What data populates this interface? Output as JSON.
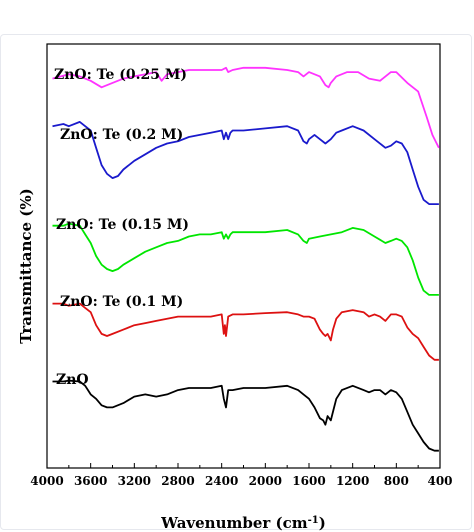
{
  "chart_data": {
    "type": "line",
    "title": "",
    "xlabel": "Wavenumber (cm",
    "xlabel_sup": "-1",
    "xlabel_tail": ")",
    "ylabel": "Transmittance (%)",
    "xlim": [
      4000,
      400
    ],
    "x_reversed": true,
    "xticks": [
      "4000",
      "3600",
      "3200",
      "2800",
      "2400",
      "2000",
      "1600",
      "1200",
      "800",
      "400"
    ],
    "y_tick_labels": false,
    "grid": false,
    "legend": "inline labels",
    "series": [
      {
        "name": "ZnO: Te (0.25 M)",
        "color": "#ff33ff",
        "points": [
          [
            3950,
            0.78
          ],
          [
            3800,
            0.77
          ],
          [
            3700,
            0.775
          ],
          [
            3600,
            0.785
          ],
          [
            3500,
            0.8
          ],
          [
            3400,
            0.79
          ],
          [
            3300,
            0.78
          ],
          [
            3200,
            0.775
          ],
          [
            3100,
            0.77
          ],
          [
            3000,
            0.765
          ],
          [
            2950,
            0.785
          ],
          [
            2900,
            0.77
          ],
          [
            2800,
            0.765
          ],
          [
            2700,
            0.76
          ],
          [
            2600,
            0.76
          ],
          [
            2500,
            0.76
          ],
          [
            2400,
            0.76
          ],
          [
            2360,
            0.755
          ],
          [
            2340,
            0.765
          ],
          [
            2300,
            0.76
          ],
          [
            2200,
            0.755
          ],
          [
            2000,
            0.755
          ],
          [
            1800,
            0.76
          ],
          [
            1700,
            0.765
          ],
          [
            1650,
            0.775
          ],
          [
            1600,
            0.765
          ],
          [
            1500,
            0.775
          ],
          [
            1450,
            0.795
          ],
          [
            1420,
            0.8
          ],
          [
            1400,
            0.79
          ],
          [
            1350,
            0.775
          ],
          [
            1250,
            0.765
          ],
          [
            1150,
            0.765
          ],
          [
            1050,
            0.78
          ],
          [
            950,
            0.785
          ],
          [
            850,
            0.765
          ],
          [
            800,
            0.765
          ],
          [
            700,
            0.79
          ],
          [
            600,
            0.81
          ],
          [
            520,
            0.87
          ],
          [
            470,
            0.91
          ],
          [
            430,
            0.93
          ],
          [
            410,
            0.94
          ]
        ]
      },
      {
        "name": "ZnO: Te (0.2 M)",
        "color": "#1a1acc",
        "points": [
          [
            3950,
            0.89
          ],
          [
            3850,
            0.885
          ],
          [
            3800,
            0.89
          ],
          [
            3700,
            0.88
          ],
          [
            3650,
            0.89
          ],
          [
            3600,
            0.9
          ],
          [
            3550,
            0.94
          ],
          [
            3500,
            0.98
          ],
          [
            3450,
            1.0
          ],
          [
            3400,
            1.01
          ],
          [
            3350,
            1.005
          ],
          [
            3300,
            0.99
          ],
          [
            3200,
            0.97
          ],
          [
            3100,
            0.955
          ],
          [
            3000,
            0.94
          ],
          [
            2900,
            0.93
          ],
          [
            2800,
            0.925
          ],
          [
            2700,
            0.915
          ],
          [
            2600,
            0.91
          ],
          [
            2500,
            0.905
          ],
          [
            2400,
            0.9
          ],
          [
            2380,
            0.92
          ],
          [
            2360,
            0.905
          ],
          [
            2340,
            0.92
          ],
          [
            2320,
            0.905
          ],
          [
            2300,
            0.9
          ],
          [
            2200,
            0.9
          ],
          [
            2000,
            0.895
          ],
          [
            1800,
            0.89
          ],
          [
            1700,
            0.9
          ],
          [
            1650,
            0.925
          ],
          [
            1620,
            0.93
          ],
          [
            1600,
            0.92
          ],
          [
            1550,
            0.91
          ],
          [
            1500,
            0.92
          ],
          [
            1450,
            0.93
          ],
          [
            1400,
            0.92
          ],
          [
            1350,
            0.905
          ],
          [
            1300,
            0.9
          ],
          [
            1200,
            0.89
          ],
          [
            1100,
            0.9
          ],
          [
            1000,
            0.92
          ],
          [
            900,
            0.94
          ],
          [
            850,
            0.935
          ],
          [
            800,
            0.925
          ],
          [
            750,
            0.93
          ],
          [
            700,
            0.95
          ],
          [
            650,
            0.99
          ],
          [
            600,
            1.03
          ],
          [
            550,
            1.06
          ],
          [
            500,
            1.07
          ],
          [
            450,
            1.07
          ],
          [
            410,
            1.07
          ]
        ]
      },
      {
        "name": "ZnO: Te (0.15 M)",
        "color": "#00e600",
        "points": [
          [
            3950,
            1.12
          ],
          [
            3850,
            1.12
          ],
          [
            3800,
            1.115
          ],
          [
            3700,
            1.12
          ],
          [
            3650,
            1.14
          ],
          [
            3600,
            1.16
          ],
          [
            3550,
            1.19
          ],
          [
            3500,
            1.21
          ],
          [
            3450,
            1.22
          ],
          [
            3400,
            1.225
          ],
          [
            3350,
            1.22
          ],
          [
            3300,
            1.21
          ],
          [
            3200,
            1.195
          ],
          [
            3100,
            1.18
          ],
          [
            3000,
            1.17
          ],
          [
            2900,
            1.16
          ],
          [
            2800,
            1.155
          ],
          [
            2700,
            1.145
          ],
          [
            2600,
            1.14
          ],
          [
            2500,
            1.14
          ],
          [
            2400,
            1.135
          ],
          [
            2380,
            1.15
          ],
          [
            2360,
            1.14
          ],
          [
            2340,
            1.15
          ],
          [
            2320,
            1.14
          ],
          [
            2300,
            1.135
          ],
          [
            2200,
            1.135
          ],
          [
            2000,
            1.135
          ],
          [
            1800,
            1.13
          ],
          [
            1700,
            1.14
          ],
          [
            1650,
            1.155
          ],
          [
            1620,
            1.16
          ],
          [
            1600,
            1.15
          ],
          [
            1500,
            1.145
          ],
          [
            1400,
            1.14
          ],
          [
            1300,
            1.135
          ],
          [
            1200,
            1.125
          ],
          [
            1100,
            1.13
          ],
          [
            1000,
            1.145
          ],
          [
            900,
            1.16
          ],
          [
            850,
            1.155
          ],
          [
            800,
            1.15
          ],
          [
            750,
            1.155
          ],
          [
            700,
            1.17
          ],
          [
            650,
            1.2
          ],
          [
            600,
            1.24
          ],
          [
            550,
            1.27
          ],
          [
            500,
            1.28
          ],
          [
            450,
            1.28
          ],
          [
            410,
            1.28
          ]
        ]
      },
      {
        "name": "ZnO: Te (0.1 M)",
        "color": "#dd1111",
        "points": [
          [
            3950,
            1.3
          ],
          [
            3850,
            1.3
          ],
          [
            3800,
            1.305
          ],
          [
            3700,
            1.3
          ],
          [
            3650,
            1.31
          ],
          [
            3600,
            1.32
          ],
          [
            3550,
            1.35
          ],
          [
            3500,
            1.37
          ],
          [
            3450,
            1.375
          ],
          [
            3400,
            1.37
          ],
          [
            3300,
            1.36
          ],
          [
            3200,
            1.35
          ],
          [
            3100,
            1.345
          ],
          [
            3000,
            1.34
          ],
          [
            2900,
            1.335
          ],
          [
            2800,
            1.33
          ],
          [
            2700,
            1.33
          ],
          [
            2600,
            1.33
          ],
          [
            2500,
            1.33
          ],
          [
            2400,
            1.325
          ],
          [
            2380,
            1.37
          ],
          [
            2370,
            1.35
          ],
          [
            2360,
            1.375
          ],
          [
            2340,
            1.33
          ],
          [
            2300,
            1.325
          ],
          [
            2200,
            1.325
          ],
          [
            2000,
            1.322
          ],
          [
            1800,
            1.32
          ],
          [
            1700,
            1.325
          ],
          [
            1650,
            1.33
          ],
          [
            1600,
            1.33
          ],
          [
            1550,
            1.335
          ],
          [
            1500,
            1.36
          ],
          [
            1470,
            1.37
          ],
          [
            1450,
            1.375
          ],
          [
            1430,
            1.37
          ],
          [
            1400,
            1.385
          ],
          [
            1380,
            1.36
          ],
          [
            1350,
            1.335
          ],
          [
            1300,
            1.32
          ],
          [
            1200,
            1.315
          ],
          [
            1100,
            1.32
          ],
          [
            1050,
            1.33
          ],
          [
            1000,
            1.325
          ],
          [
            950,
            1.33
          ],
          [
            900,
            1.34
          ],
          [
            850,
            1.325
          ],
          [
            800,
            1.325
          ],
          [
            750,
            1.33
          ],
          [
            700,
            1.355
          ],
          [
            650,
            1.37
          ],
          [
            600,
            1.38
          ],
          [
            550,
            1.4
          ],
          [
            500,
            1.42
          ],
          [
            450,
            1.43
          ],
          [
            410,
            1.43
          ]
        ]
      },
      {
        "name": "ZnO",
        "color": "#000000",
        "points": [
          [
            3950,
            1.48
          ],
          [
            3850,
            1.48
          ],
          [
            3800,
            1.478
          ],
          [
            3700,
            1.48
          ],
          [
            3650,
            1.49
          ],
          [
            3600,
            1.51
          ],
          [
            3550,
            1.52
          ],
          [
            3500,
            1.535
          ],
          [
            3450,
            1.54
          ],
          [
            3400,
            1.54
          ],
          [
            3300,
            1.53
          ],
          [
            3200,
            1.515
          ],
          [
            3100,
            1.51
          ],
          [
            3000,
            1.515
          ],
          [
            2900,
            1.51
          ],
          [
            2800,
            1.5
          ],
          [
            2700,
            1.495
          ],
          [
            2600,
            1.495
          ],
          [
            2500,
            1.495
          ],
          [
            2400,
            1.49
          ],
          [
            2380,
            1.52
          ],
          [
            2360,
            1.54
          ],
          [
            2340,
            1.5
          ],
          [
            2300,
            1.5
          ],
          [
            2200,
            1.495
          ],
          [
            2000,
            1.495
          ],
          [
            1800,
            1.49
          ],
          [
            1700,
            1.5
          ],
          [
            1650,
            1.51
          ],
          [
            1600,
            1.52
          ],
          [
            1550,
            1.54
          ],
          [
            1500,
            1.565
          ],
          [
            1470,
            1.57
          ],
          [
            1450,
            1.58
          ],
          [
            1430,
            1.56
          ],
          [
            1400,
            1.57
          ],
          [
            1370,
            1.54
          ],
          [
            1350,
            1.52
          ],
          [
            1300,
            1.5
          ],
          [
            1200,
            1.49
          ],
          [
            1100,
            1.5
          ],
          [
            1050,
            1.505
          ],
          [
            1000,
            1.5
          ],
          [
            950,
            1.5
          ],
          [
            900,
            1.51
          ],
          [
            850,
            1.5
          ],
          [
            800,
            1.505
          ],
          [
            750,
            1.52
          ],
          [
            700,
            1.55
          ],
          [
            650,
            1.58
          ],
          [
            600,
            1.6
          ],
          [
            550,
            1.62
          ],
          [
            500,
            1.635
          ],
          [
            450,
            1.64
          ],
          [
            410,
            1.64
          ]
        ]
      }
    ]
  }
}
